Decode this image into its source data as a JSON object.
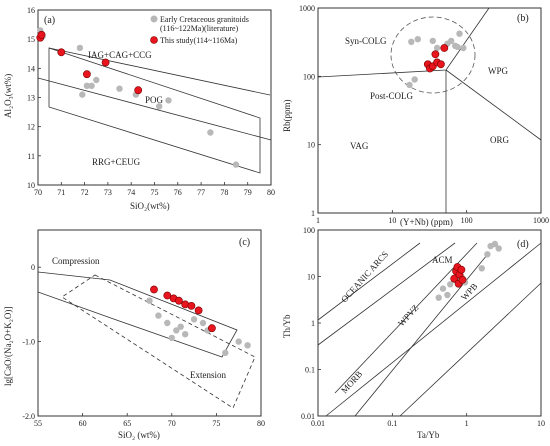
{
  "colors": {
    "literature": "#b8b8b8",
    "this_study": "#e8141e",
    "this_study_edge": "#7a0000",
    "line": "#333333"
  },
  "chart_data": [
    {
      "panel": "(a)",
      "type": "scatter",
      "xlabel": "SiO₂(wt%)",
      "ylabel": "Al₂O₃(wt%)",
      "xlim": [
        70,
        80
      ],
      "ylim": [
        10,
        16
      ],
      "xticks": [
        "70",
        "71",
        "72",
        "73",
        "74",
        "75",
        "76",
        "77",
        "78",
        "79",
        "80"
      ],
      "yticks": [
        "10",
        "11",
        "12",
        "13",
        "14",
        "15",
        "16"
      ],
      "legend": [
        "Early Cretaceous granitoids",
        "(116~122Ma)(literature)",
        "This study(114~116Ma)"
      ],
      "field_labels": [
        "IAG+CAG+CCG",
        "POG",
        "RRG+CEUG"
      ],
      "series": [
        {
          "name": "Early Cretaceous granitoids (116~122Ma)(literature)",
          "x": [
            70.1,
            70.2,
            71.8,
            71.9,
            72.1,
            72.3,
            72.5,
            73.5,
            74.2,
            75.2,
            75.6,
            77.4,
            78.5
          ],
          "y": [
            15.3,
            15.1,
            14.7,
            13.1,
            13.4,
            13.4,
            13.6,
            13.3,
            13.1,
            12.7,
            12.9,
            11.8,
            10.7
          ]
        },
        {
          "name": "This study(114~116Ma)",
          "x": [
            70.1,
            70.15,
            71.0,
            72.1,
            72.9,
            74.3
          ],
          "y": [
            15.05,
            15.15,
            14.55,
            13.8,
            14.2,
            13.25
          ]
        }
      ]
    },
    {
      "panel": "(b)",
      "type": "scatter",
      "scale": "log-log",
      "xlabel": "(Y+Nb) (ppm)",
      "ylabel": "Rb(ppm)",
      "xlim": [
        1,
        1000
      ],
      "ylim": [
        1,
        1000
      ],
      "xticks": [
        "1",
        "10",
        "100",
        "1000"
      ],
      "yticks": [
        "1",
        "10",
        "100",
        "1000"
      ],
      "field_labels": [
        "Syn-COLG",
        "WPG",
        "Post-COLG",
        "VAG",
        "ORG"
      ],
      "series": [
        {
          "name": "literature",
          "x": [
            17,
            20,
            18,
            22,
            55,
            62,
            70,
            75,
            80,
            90,
            35,
            40
          ],
          "y": [
            75,
            90,
            320,
            350,
            300,
            330,
            280,
            270,
            420,
            260,
            330,
            260
          ]
        },
        {
          "name": "this study",
          "x": [
            30,
            32,
            35,
            38,
            40,
            45,
            50
          ],
          "y": [
            150,
            130,
            140,
            210,
            160,
            150,
            260
          ]
        }
      ]
    },
    {
      "panel": "(c)",
      "type": "scatter",
      "xlabel": "SiO₂ (wt%)",
      "ylabel": "lg[CaO/(Na₂O+K₂O)]",
      "xlim": [
        55,
        80
      ],
      "ylim": [
        -2,
        0.5
      ],
      "xticks": [
        "55",
        "60",
        "65",
        "70",
        "75",
        "80"
      ],
      "yticks": [
        "-2.0",
        "-1.0",
        "0"
      ],
      "field_labels": [
        "Compression",
        "Extension"
      ],
      "series": [
        {
          "name": "literature",
          "x": [
            67.5,
            68.5,
            69.5,
            70.0,
            70.5,
            71.0,
            71.5,
            72.5,
            73.5,
            74.0,
            76.0,
            77.5,
            78.5
          ],
          "y": [
            -0.45,
            -0.65,
            -0.75,
            -0.95,
            -0.85,
            -0.8,
            -0.9,
            -0.7,
            -0.75,
            -0.85,
            -1.15,
            -1.0,
            -1.05
          ]
        },
        {
          "name": "this study",
          "x": [
            68.0,
            69.5,
            70.2,
            70.8,
            71.5,
            72.2,
            73.0,
            74.5
          ],
          "y": [
            -0.3,
            -0.38,
            -0.42,
            -0.45,
            -0.5,
            -0.52,
            -0.58,
            -0.82
          ]
        }
      ]
    },
    {
      "panel": "(d)",
      "type": "scatter",
      "scale": "log-log",
      "xlabel": "Ta/Yb",
      "ylabel": "Th/Yb",
      "xlim": [
        0.01,
        10
      ],
      "ylim": [
        0.01,
        100
      ],
      "xticks": [
        "0.01",
        "0.1",
        "1",
        "10"
      ],
      "yticks": [
        "0.01",
        "0.1",
        "1",
        "10",
        "100"
      ],
      "field_labels": [
        "OCEANIC ARCS",
        "ACM",
        "WPVZ",
        "WPB",
        "MORB"
      ],
      "series": [
        {
          "name": "literature",
          "x": [
            0.42,
            0.48,
            0.55,
            0.6,
            0.68,
            0.75,
            0.85,
            0.95,
            1.6,
            1.9,
            2.1,
            2.4,
            2.7
          ],
          "y": [
            3.5,
            5.5,
            4.0,
            6.8,
            8.5,
            9.0,
            10.0,
            7.5,
            15.0,
            30.0,
            45.0,
            50.0,
            40.0
          ]
        },
        {
          "name": "this study",
          "x": [
            0.68,
            0.72,
            0.75,
            0.78,
            0.8,
            0.85,
            0.88
          ],
          "y": [
            9.0,
            13.0,
            16.0,
            7.0,
            11.0,
            14.0,
            8.5
          ]
        }
      ]
    }
  ]
}
